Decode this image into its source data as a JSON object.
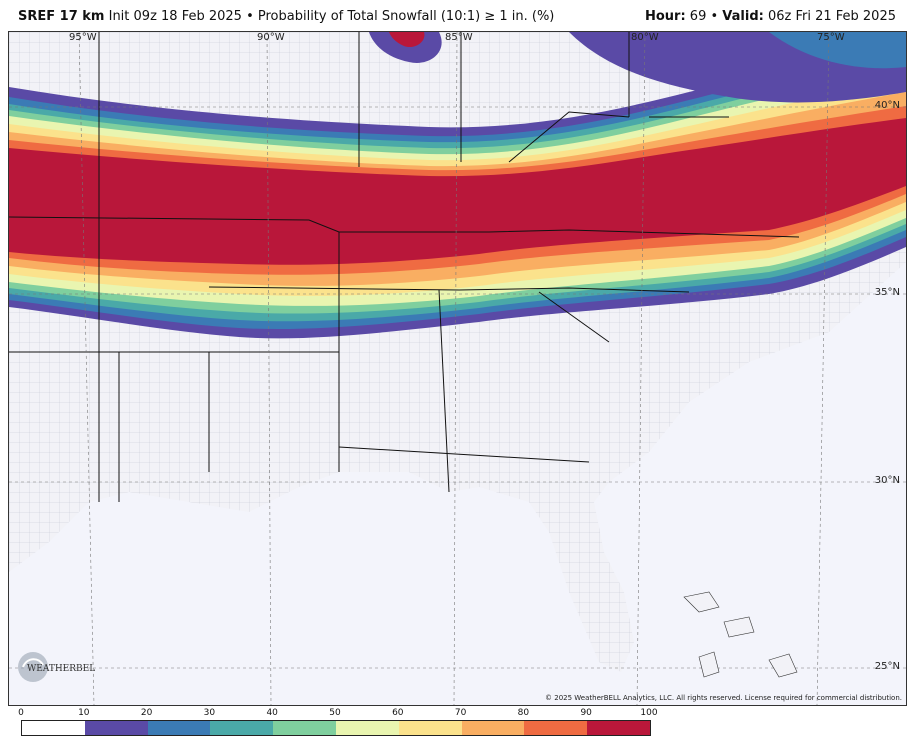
{
  "header": {
    "model": "SREF 17 km",
    "init": "Init 09z 18 Feb 2025",
    "product": "Probability of Total Snowfall (10:1) ≥ 1 in. (%)",
    "hour_label": "Hour:",
    "hour_value": "69",
    "valid_label": "Valid:",
    "valid_value": "06z Fri 21 Feb 2025"
  },
  "map": {
    "lon_labels": [
      "95°W",
      "90°W",
      "85°W",
      "80°W",
      "75°W"
    ],
    "lat_labels": [
      "40°N",
      "35°N",
      "30°N",
      "25°N"
    ],
    "copyright": "© 2025 WeatherBELL Analytics, LLC. All rights reserved. License required for commercial distribution.",
    "logo_text": "WEATHERBELL"
  },
  "colorbar": {
    "ticks": [
      "0",
      "10",
      "20",
      "30",
      "40",
      "50",
      "60",
      "70",
      "80",
      "90",
      "100"
    ],
    "colors": [
      "#ffffff",
      "#5a4aa6",
      "#3b7bb5",
      "#4aa9a8",
      "#7fcf9e",
      "#e9f5b0",
      "#fbe28c",
      "#f9ae62",
      "#ef6b42",
      "#b9173a"
    ]
  }
}
